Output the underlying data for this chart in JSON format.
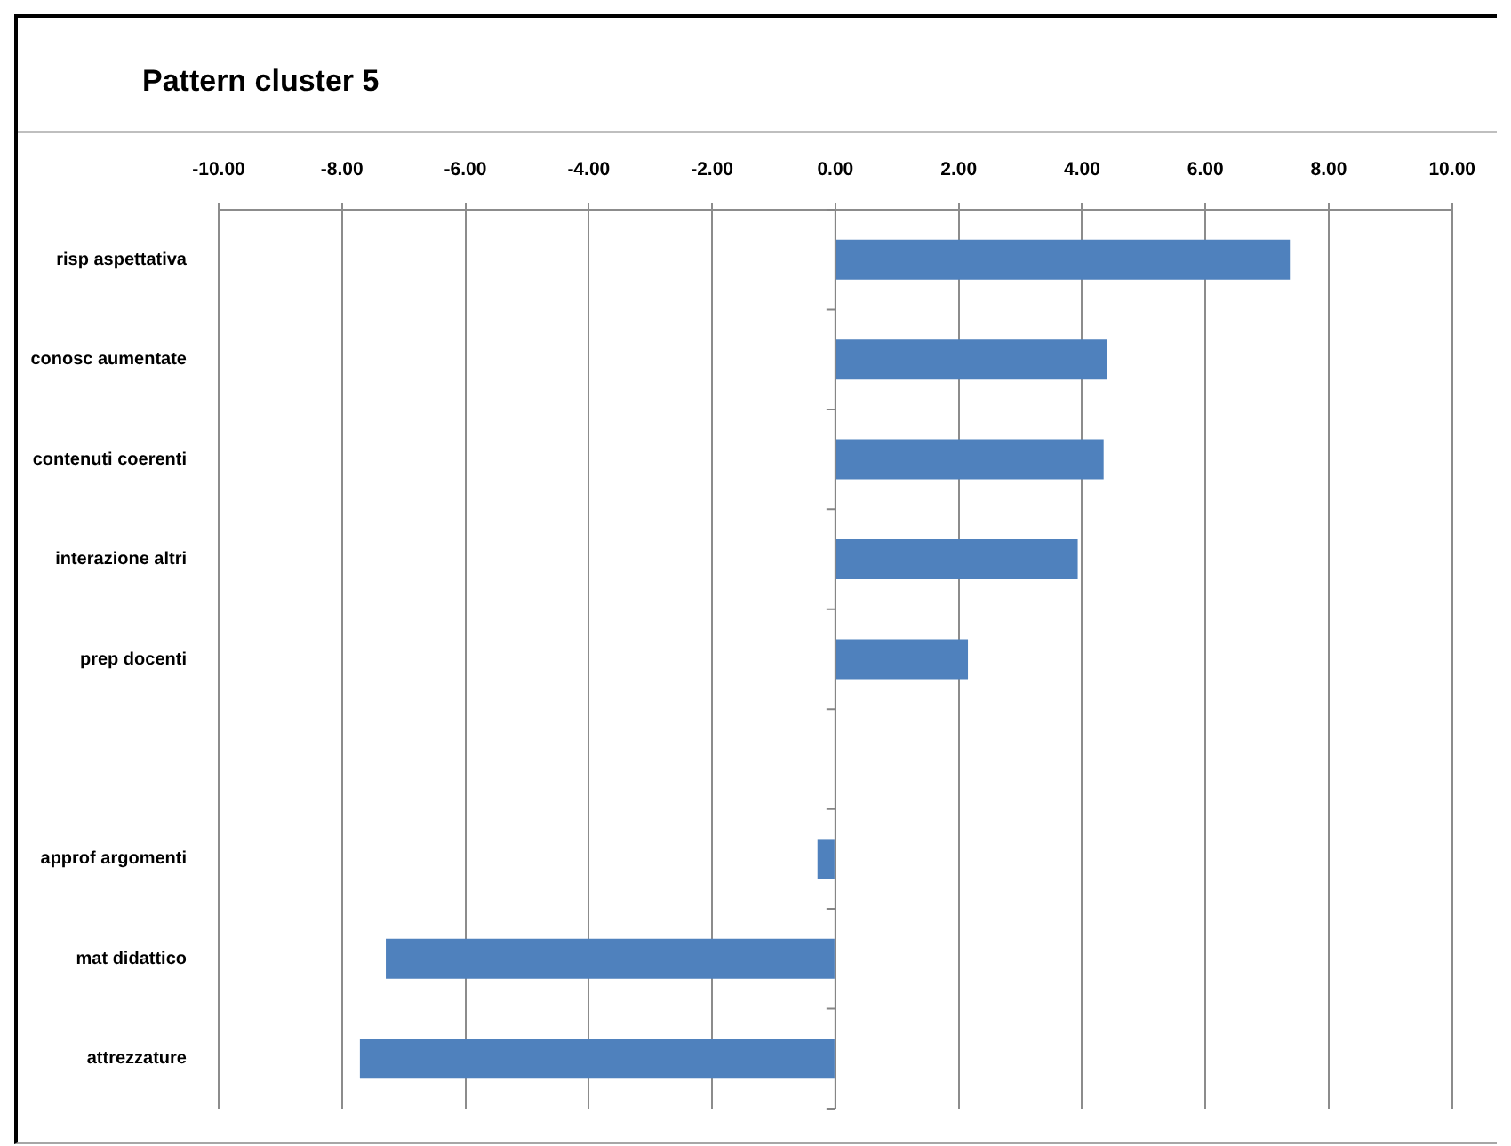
{
  "chart_data": {
    "type": "bar",
    "title": "Pattern cluster 5",
    "orientation": "horizontal",
    "categories": [
      "risp aspettativa",
      "conosc aumentate",
      "contenuti coerenti",
      "interazione altri",
      "prep docenti",
      null,
      "approf argomenti",
      "mat didattico",
      "attrezzature"
    ],
    "values": [
      7.37,
      4.41,
      4.35,
      3.93,
      2.15,
      null,
      -0.29,
      -7.29,
      -7.71
    ],
    "color": "#4f81bd",
    "xlim": [
      -10,
      10
    ],
    "xticks": [
      {
        "value": -10,
        "label": "-10.00"
      },
      {
        "value": -8,
        "label": "-8.00"
      },
      {
        "value": -6,
        "label": "-6.00"
      },
      {
        "value": -4,
        "label": "-4.00"
      },
      {
        "value": -2,
        "label": "-2.00"
      },
      {
        "value": 0,
        "label": "0.00"
      },
      {
        "value": 2,
        "label": "2.00"
      },
      {
        "value": 4,
        "label": "4.00"
      },
      {
        "value": 6,
        "label": "6.00"
      },
      {
        "value": 8,
        "label": "8.00"
      },
      {
        "value": 10,
        "label": "10.00"
      }
    ],
    "grid": "x"
  }
}
